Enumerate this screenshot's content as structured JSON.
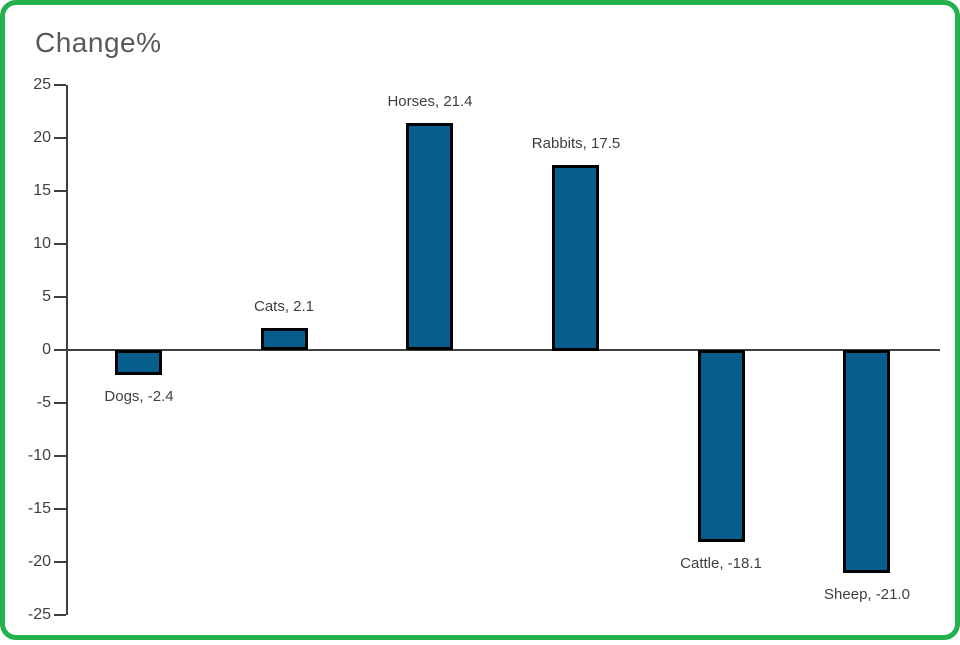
{
  "chart_data": {
    "type": "bar",
    "title": "Change%",
    "categories": [
      "Dogs",
      "Cats",
      "Horses",
      "Rabbits",
      "Cattle",
      "Sheep"
    ],
    "values": [
      -2.4,
      2.1,
      21.4,
      17.5,
      -18.1,
      -21.0
    ],
    "data_labels": [
      "Dogs, -2.4",
      "Cats, 2.1",
      "Horses, 21.4",
      "Rabbits, 17.5",
      "Cattle, -18.1",
      "Sheep, -21.0"
    ],
    "xlabel": "",
    "ylabel": "",
    "ylim": [
      -25,
      25
    ],
    "yticks": [
      25,
      20,
      15,
      10,
      5,
      0,
      -5,
      -10,
      -15,
      -20,
      -25
    ],
    "grid": false,
    "legend_position": "none",
    "colors": {
      "bar_fill": "#075E8C",
      "bar_border": "#000000",
      "axis": "#404040",
      "tick_label": "#404040",
      "data_label": "#3F3F3F",
      "title": "#595959",
      "frame_border": "#22B14C",
      "background": "#FFFFFF"
    }
  }
}
